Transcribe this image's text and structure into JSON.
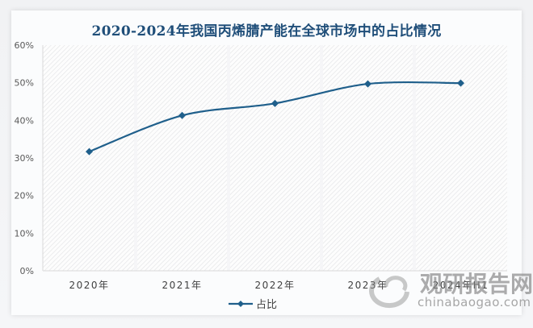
{
  "title": "2020-2024年我国丙烯腈产能在全球市场中的占比情况",
  "chart_data": {
    "type": "line",
    "title": "2020-2024年我国丙烯腈产能在全球市场中的占比情况",
    "categories": [
      "2020年",
      "2021年",
      "2022年",
      "2023年",
      "2024年H1"
    ],
    "series": [
      {
        "name": "占比",
        "values": [
          31.7,
          41.3,
          44.5,
          49.7,
          49.9
        ],
        "color": "#1f5f8b",
        "marker": "diamond",
        "smooth": true
      }
    ],
    "xlabel": "",
    "ylabel": "",
    "ylim": [
      0,
      60
    ],
    "yticks": [
      "0%",
      "10%",
      "20%",
      "30%",
      "40%",
      "50%",
      "60%"
    ],
    "grid": false,
    "plot_background": "diagonal-hatch",
    "legend_position": "bottom"
  },
  "legend": {
    "label": "占比"
  },
  "watermark": {
    "cn": "观研报告网",
    "en": "chinabaogao.com"
  },
  "colors": {
    "title": "#1f4e79",
    "series": "#1f5f8b"
  }
}
